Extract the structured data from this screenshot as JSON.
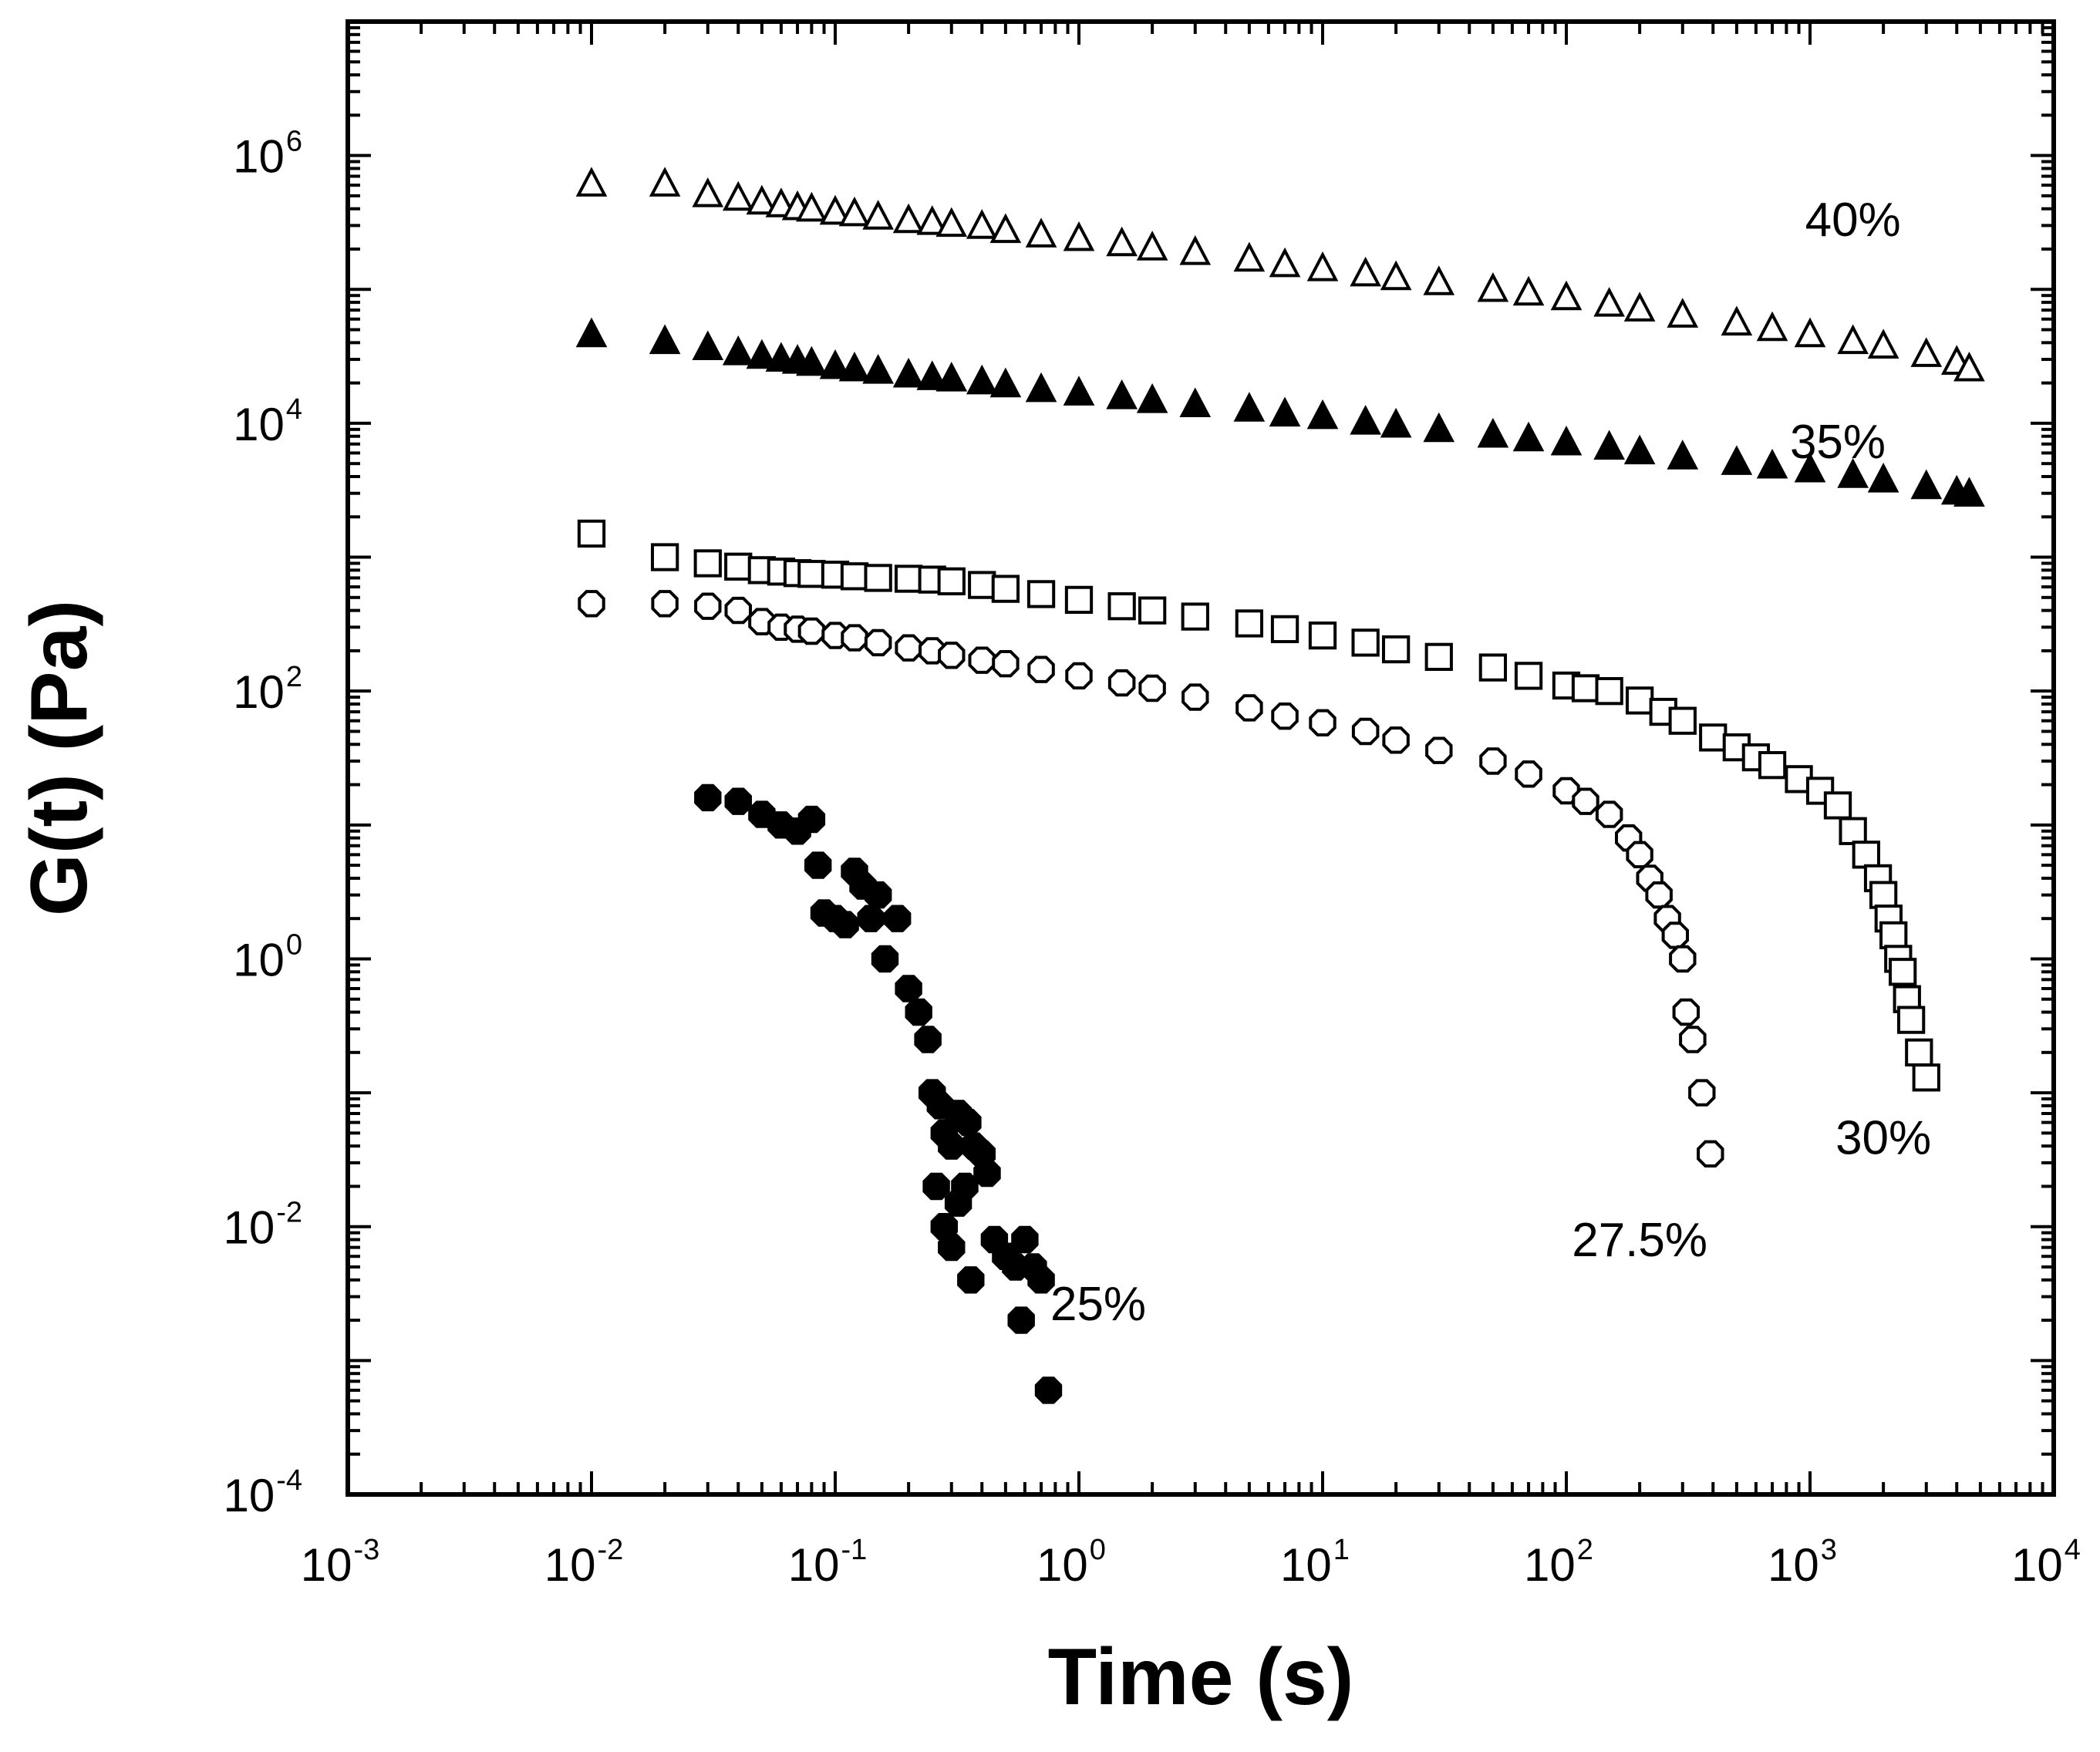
{
  "chart_data": {
    "type": "scatter",
    "xscale": "log",
    "yscale": "log",
    "xlabel": "Time (s)",
    "ylabel": "G(t) (Pa)",
    "xlim": [
      0.001,
      10000
    ],
    "ylim": [
      0.0001,
      10000000
    ],
    "x_ticks": [
      {
        "base": "10",
        "exp": "-3",
        "value": 0.001
      },
      {
        "base": "10",
        "exp": "-2",
        "value": 0.01
      },
      {
        "base": "10",
        "exp": "-1",
        "value": 0.1
      },
      {
        "base": "10",
        "exp": "0",
        "value": 1
      },
      {
        "base": "10",
        "exp": "1",
        "value": 10
      },
      {
        "base": "10",
        "exp": "2",
        "value": 100
      },
      {
        "base": "10",
        "exp": "3",
        "value": 1000
      },
      {
        "base": "10",
        "exp": "4",
        "value": 10000
      }
    ],
    "y_ticks": [
      {
        "base": "10",
        "exp": "-4",
        "value": 0.0001
      },
      {
        "base": "10",
        "exp": "-2",
        "value": 0.01
      },
      {
        "base": "10",
        "exp": "0",
        "value": 1
      },
      {
        "base": "10",
        "exp": "2",
        "value": 100
      },
      {
        "base": "10",
        "exp": "4",
        "value": 10000
      },
      {
        "base": "10",
        "exp": "6",
        "value": 1000000
      }
    ],
    "series": [
      {
        "name": "40%",
        "marker": "triangle-open",
        "label_anchor": [
          1500,
          250000
        ],
        "points": [
          [
            0.01,
            600000
          ],
          [
            0.02,
            600000
          ],
          [
            0.03,
            500000
          ],
          [
            0.04,
            470000
          ],
          [
            0.05,
            440000
          ],
          [
            0.06,
            420000
          ],
          [
            0.07,
            400000
          ],
          [
            0.08,
            390000
          ],
          [
            0.1,
            370000
          ],
          [
            0.12,
            360000
          ],
          [
            0.15,
            340000
          ],
          [
            0.2,
            320000
          ],
          [
            0.25,
            310000
          ],
          [
            0.3,
            300000
          ],
          [
            0.4,
            290000
          ],
          [
            0.5,
            270000
          ],
          [
            0.7,
            250000
          ],
          [
            1,
            235000
          ],
          [
            1.5,
            215000
          ],
          [
            2,
            200000
          ],
          [
            3,
            185000
          ],
          [
            5,
            165000
          ],
          [
            7,
            150000
          ],
          [
            10,
            140000
          ],
          [
            15,
            128000
          ],
          [
            20,
            120000
          ],
          [
            30,
            110000
          ],
          [
            50,
            98000
          ],
          [
            70,
            92000
          ],
          [
            100,
            85000
          ],
          [
            150,
            76000
          ],
          [
            200,
            70000
          ],
          [
            300,
            63000
          ],
          [
            500,
            55000
          ],
          [
            700,
            50000
          ],
          [
            1000,
            45000
          ],
          [
            1500,
            40000
          ],
          [
            2000,
            37000
          ],
          [
            3000,
            32000
          ],
          [
            4000,
            28000
          ],
          [
            4500,
            25000
          ]
        ]
      },
      {
        "name": "35%",
        "marker": "triangle-filled",
        "label_anchor": [
          1300,
          5500
        ],
        "points": [
          [
            0.01,
            45000
          ],
          [
            0.02,
            40000
          ],
          [
            0.03,
            36000
          ],
          [
            0.04,
            33000
          ],
          [
            0.05,
            31000
          ],
          [
            0.06,
            29500
          ],
          [
            0.07,
            28500
          ],
          [
            0.08,
            27500
          ],
          [
            0.1,
            26000
          ],
          [
            0.12,
            25000
          ],
          [
            0.15,
            24000
          ],
          [
            0.2,
            22500
          ],
          [
            0.25,
            21500
          ],
          [
            0.3,
            21000
          ],
          [
            0.4,
            20000
          ],
          [
            0.5,
            19000
          ],
          [
            0.7,
            17500
          ],
          [
            1,
            16500
          ],
          [
            1.5,
            15500
          ],
          [
            2,
            14500
          ],
          [
            3,
            13500
          ],
          [
            5,
            12500
          ],
          [
            7,
            11500
          ],
          [
            10,
            11000
          ],
          [
            15,
            10000
          ],
          [
            20,
            9500
          ],
          [
            30,
            8800
          ],
          [
            50,
            8000
          ],
          [
            70,
            7500
          ],
          [
            100,
            7000
          ],
          [
            150,
            6500
          ],
          [
            200,
            6000
          ],
          [
            300,
            5500
          ],
          [
            500,
            5000
          ],
          [
            700,
            4700
          ],
          [
            1000,
            4400
          ],
          [
            1500,
            4000
          ],
          [
            2000,
            3700
          ],
          [
            3000,
            3300
          ],
          [
            4000,
            3000
          ],
          [
            4500,
            2900
          ]
        ]
      },
      {
        "name": "30%",
        "marker": "square-open",
        "label_anchor": [
          2000,
          0.035
        ],
        "points": [
          [
            0.01,
            1500
          ],
          [
            0.02,
            1000
          ],
          [
            0.03,
            900
          ],
          [
            0.04,
            850
          ],
          [
            0.05,
            800
          ],
          [
            0.06,
            780
          ],
          [
            0.07,
            760
          ],
          [
            0.08,
            750
          ],
          [
            0.1,
            740
          ],
          [
            0.12,
            720
          ],
          [
            0.15,
            700
          ],
          [
            0.2,
            690
          ],
          [
            0.25,
            680
          ],
          [
            0.3,
            660
          ],
          [
            0.4,
            620
          ],
          [
            0.5,
            580
          ],
          [
            0.7,
            530
          ],
          [
            1,
            480
          ],
          [
            1.5,
            430
          ],
          [
            2,
            400
          ],
          [
            3,
            360
          ],
          [
            5,
            320
          ],
          [
            7,
            290
          ],
          [
            10,
            260
          ],
          [
            15,
            230
          ],
          [
            20,
            205
          ],
          [
            30,
            180
          ],
          [
            50,
            150
          ],
          [
            70,
            130
          ],
          [
            100,
            110
          ],
          [
            120,
            105
          ],
          [
            150,
            100
          ],
          [
            200,
            85
          ],
          [
            250,
            70
          ],
          [
            300,
            60
          ],
          [
            400,
            45
          ],
          [
            500,
            38
          ],
          [
            600,
            32
          ],
          [
            700,
            28
          ],
          [
            900,
            22
          ],
          [
            1100,
            18
          ],
          [
            1300,
            14
          ],
          [
            1500,
            9
          ],
          [
            1700,
            6
          ],
          [
            1900,
            4
          ],
          [
            2000,
            3
          ],
          [
            2100,
            2
          ],
          [
            2200,
            1.5
          ],
          [
            2300,
            1
          ],
          [
            2400,
            0.8
          ],
          [
            2500,
            0.5
          ],
          [
            2600,
            0.35
          ],
          [
            2800,
            0.2
          ],
          [
            3000,
            0.13
          ]
        ]
      },
      {
        "name": "27.5%",
        "marker": "circle-open",
        "label_anchor": [
          200,
          0.006
        ],
        "points": [
          [
            0.01,
            450
          ],
          [
            0.02,
            450
          ],
          [
            0.03,
            430
          ],
          [
            0.04,
            400
          ],
          [
            0.05,
            330
          ],
          [
            0.06,
            300
          ],
          [
            0.07,
            290
          ],
          [
            0.08,
            280
          ],
          [
            0.1,
            260
          ],
          [
            0.12,
            250
          ],
          [
            0.15,
            230
          ],
          [
            0.2,
            210
          ],
          [
            0.25,
            200
          ],
          [
            0.3,
            185
          ],
          [
            0.4,
            170
          ],
          [
            0.5,
            160
          ],
          [
            0.7,
            145
          ],
          [
            1,
            130
          ],
          [
            1.5,
            115
          ],
          [
            2,
            105
          ],
          [
            3,
            90
          ],
          [
            5,
            75
          ],
          [
            7,
            65
          ],
          [
            10,
            58
          ],
          [
            15,
            50
          ],
          [
            20,
            43
          ],
          [
            30,
            36
          ],
          [
            50,
            30
          ],
          [
            70,
            24
          ],
          [
            100,
            18
          ],
          [
            120,
            15
          ],
          [
            150,
            12
          ],
          [
            180,
            8
          ],
          [
            200,
            6
          ],
          [
            220,
            4
          ],
          [
            240,
            3
          ],
          [
            260,
            2
          ],
          [
            280,
            1.5
          ],
          [
            300,
            1
          ],
          [
            310,
            0.4
          ],
          [
            330,
            0.25
          ],
          [
            360,
            0.1
          ],
          [
            390,
            0.035
          ]
        ]
      },
      {
        "name": "25%",
        "marker": "circle-filled",
        "label_anchor": [
          1.2,
          0.002
        ],
        "points": [
          [
            0.03,
            16
          ],
          [
            0.04,
            15
          ],
          [
            0.05,
            12
          ],
          [
            0.06,
            10
          ],
          [
            0.07,
            9
          ],
          [
            0.08,
            11
          ],
          [
            0.085,
            5
          ],
          [
            0.09,
            2.2
          ],
          [
            0.1,
            2
          ],
          [
            0.11,
            1.8
          ],
          [
            0.12,
            4.5
          ],
          [
            0.13,
            3.5
          ],
          [
            0.14,
            2
          ],
          [
            0.15,
            3
          ],
          [
            0.16,
            1
          ],
          [
            0.18,
            2
          ],
          [
            0.2,
            0.6
          ],
          [
            0.22,
            0.4
          ],
          [
            0.24,
            0.25
          ],
          [
            0.25,
            0.1
          ],
          [
            0.27,
            0.08
          ],
          [
            0.28,
            0.05
          ],
          [
            0.3,
            0.04
          ],
          [
            0.32,
            0.07
          ],
          [
            0.35,
            0.06
          ],
          [
            0.37,
            0.04
          ],
          [
            0.4,
            0.035
          ],
          [
            0.42,
            0.025
          ],
          [
            0.26,
            0.02
          ],
          [
            0.28,
            0.01
          ],
          [
            0.3,
            0.007
          ],
          [
            0.32,
            0.015
          ],
          [
            0.34,
            0.02
          ],
          [
            0.36,
            0.004
          ],
          [
            0.45,
            0.008
          ],
          [
            0.5,
            0.006
          ],
          [
            0.55,
            0.005
          ],
          [
            0.6,
            0.008
          ],
          [
            0.65,
            0.005
          ],
          [
            0.58,
            0.002
          ],
          [
            0.7,
            0.004
          ],
          [
            0.75,
            0.0006
          ]
        ]
      }
    ]
  }
}
